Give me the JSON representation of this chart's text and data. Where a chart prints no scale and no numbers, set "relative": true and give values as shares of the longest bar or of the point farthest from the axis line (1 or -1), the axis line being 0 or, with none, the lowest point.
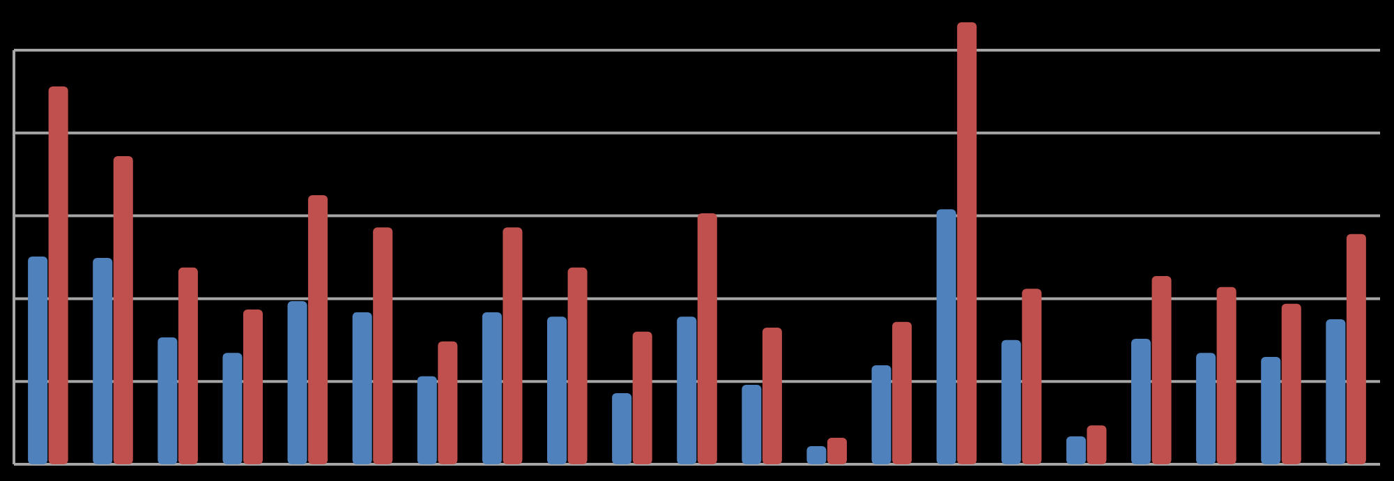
{
  "chart_data": {
    "type": "bar",
    "relative": true,
    "grid": "y",
    "categories": [
      null,
      null,
      null,
      null,
      null,
      null,
      null,
      null,
      null,
      null,
      null,
      null,
      null,
      null,
      null,
      null,
      null,
      null,
      null,
      null,
      null
    ],
    "series": [
      {
        "color": "#4f81bd",
        "values": [
          0.47,
          0.467,
          0.287,
          0.252,
          0.369,
          0.344,
          0.199,
          0.344,
          0.334,
          0.161,
          0.334,
          0.18,
          0.041,
          0.224,
          0.577,
          0.281,
          0.063,
          0.284,
          0.252,
          0.243,
          0.328
        ]
      },
      {
        "color": "#c0504d",
        "values": [
          0.855,
          0.697,
          0.445,
          0.35,
          0.609,
          0.536,
          0.278,
          0.536,
          0.445,
          0.3,
          0.568,
          0.309,
          0.06,
          0.322,
          1,
          0.397,
          0.088,
          0.426,
          0.401,
          0.363,
          0.521
        ]
      }
    ]
  }
}
